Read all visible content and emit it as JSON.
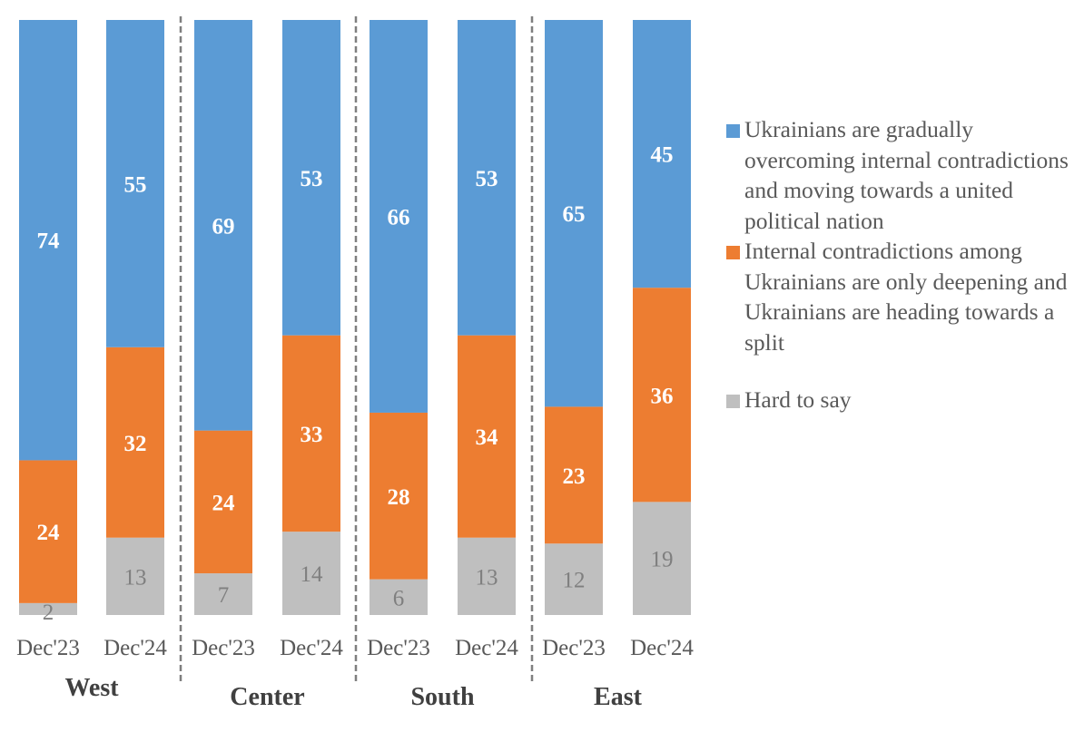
{
  "chart_data": {
    "type": "bar",
    "stacked": true,
    "title": "",
    "xlabel": "",
    "ylabel": "",
    "ylim": [
      0,
      100
    ],
    "grid": false,
    "legend_position": "right",
    "groups": [
      {
        "name": "West",
        "categories": [
          "Dec'23",
          "Dec'24"
        ]
      },
      {
        "name": "Center",
        "categories": [
          "Dec'23",
          "Dec'24"
        ]
      },
      {
        "name": "South",
        "categories": [
          "Dec'23",
          "Dec'24"
        ]
      },
      {
        "name": "East",
        "categories": [
          "Dec'23",
          "Dec'24"
        ]
      }
    ],
    "categories": [
      "Dec'23",
      "Dec'24",
      "Dec'23",
      "Dec'24",
      "Dec'23",
      "Dec'24",
      "Dec'23",
      "Dec'24"
    ],
    "series": [
      {
        "name": "Hard to say",
        "color": "#bfbfbf",
        "values": [
          2,
          13,
          7,
          14,
          6,
          13,
          12,
          19
        ]
      },
      {
        "name": "Internal contradictions among Ukrainians are only deepening and Ukrainians are heading towards a split",
        "color": "#ed7d31",
        "values": [
          24,
          32,
          24,
          33,
          28,
          34,
          23,
          36
        ]
      },
      {
        "name": "Ukrainians are gradually overcoming internal contradictions and moving towards a united political nation",
        "color": "#5b9bd5",
        "values": [
          74,
          55,
          69,
          53,
          66,
          53,
          65,
          45
        ]
      }
    ],
    "legend": [
      {
        "label": "Ukrainians are gradually overcoming internal contradictions and moving towards a united political nation",
        "color": "#5b9bd5"
      },
      {
        "label": "Internal contradictions among Ukrainians are only deepening and Ukrainians are heading towards a split",
        "color": "#ed7d31"
      },
      {
        "label": "Hard to say",
        "color": "#bfbfbf"
      }
    ]
  }
}
